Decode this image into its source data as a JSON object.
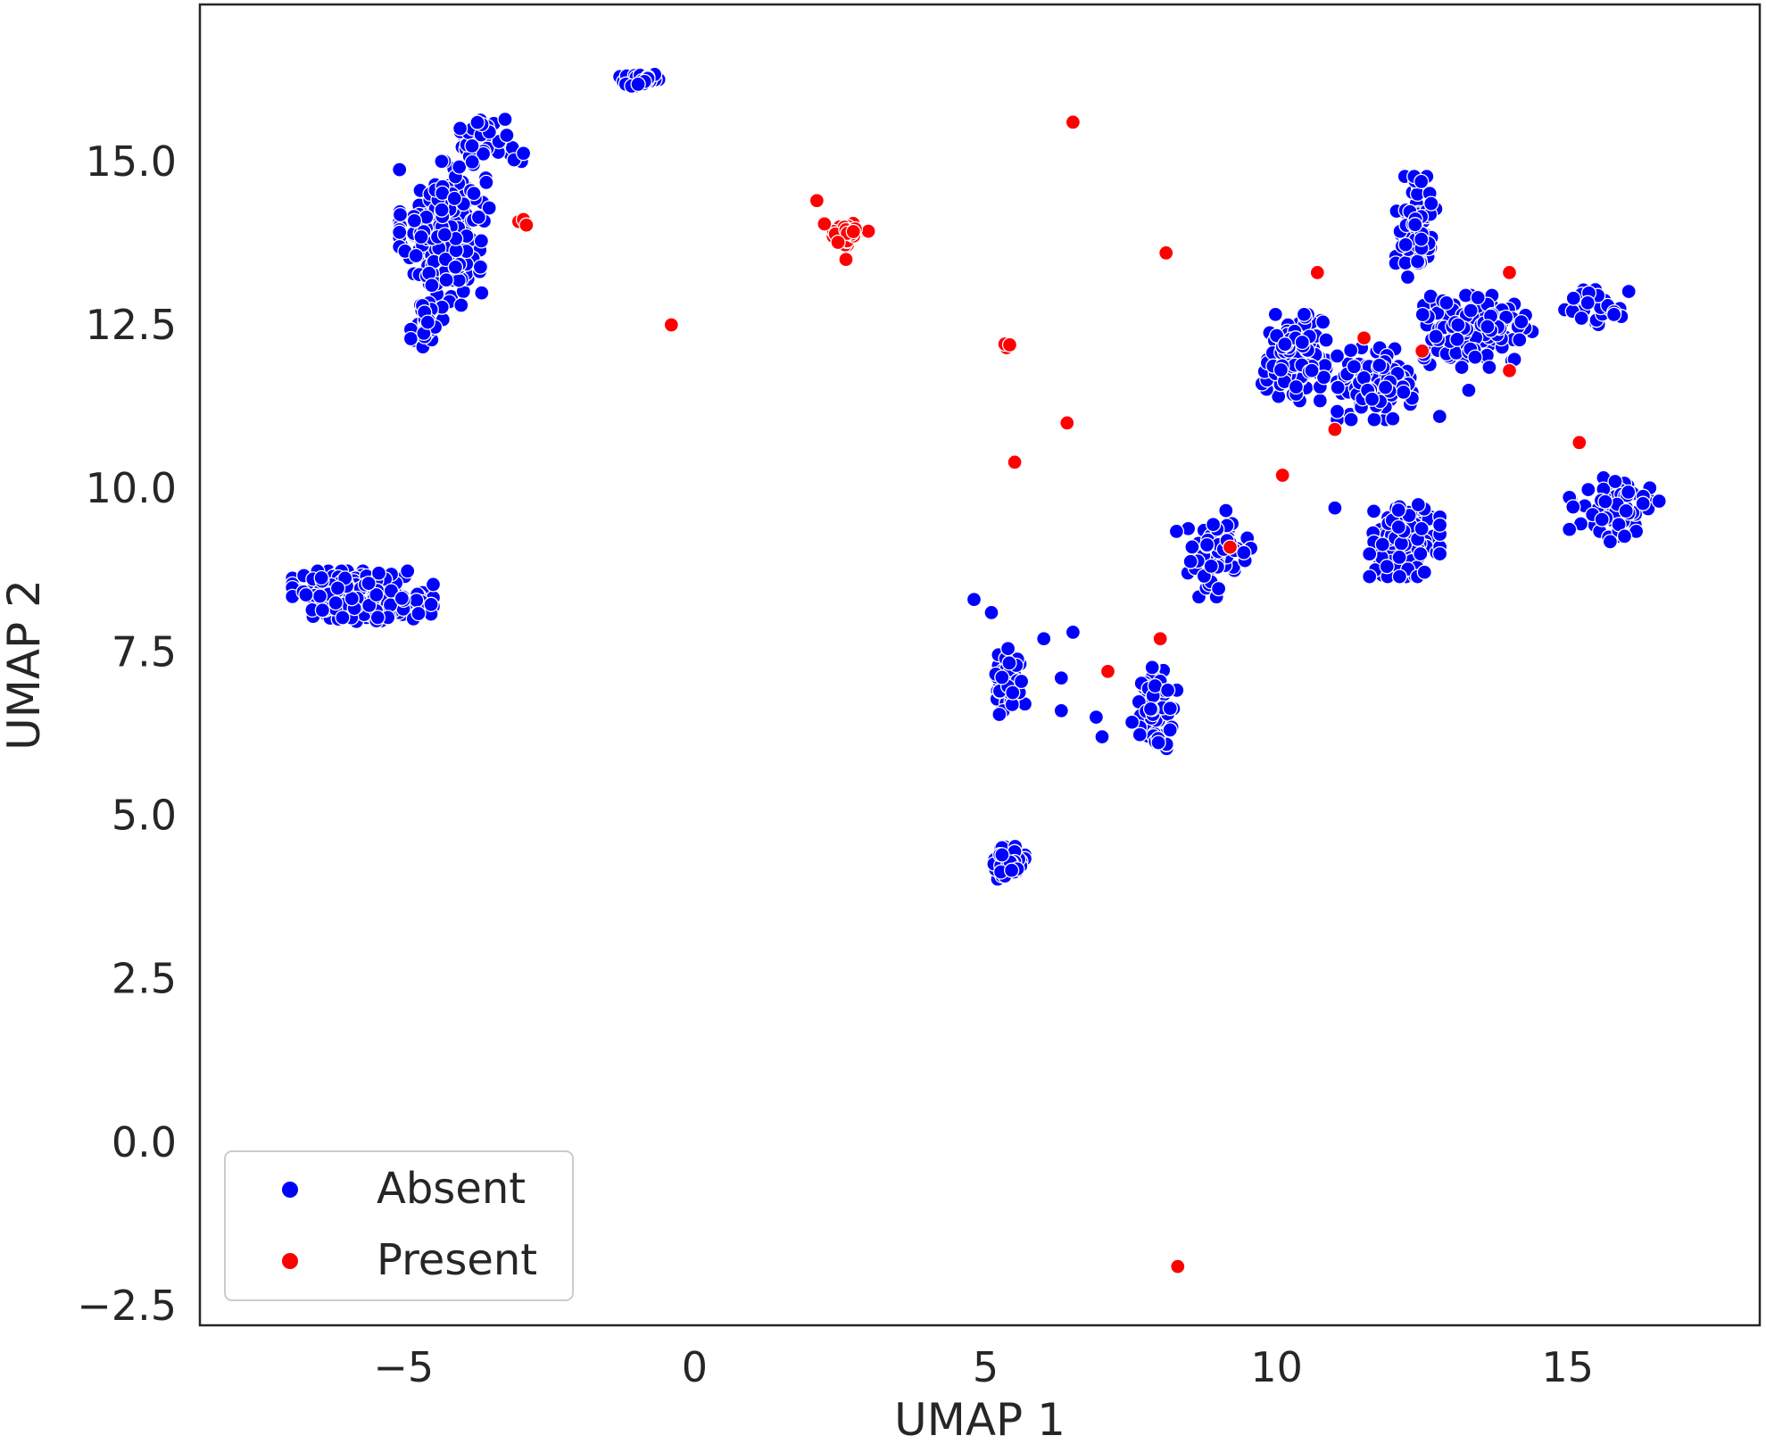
{
  "chart_data": {
    "type": "scatter",
    "title": "",
    "xlabel": "UMAP 1",
    "ylabel": "UMAP 2",
    "xlim": [
      -8.5,
      18.3
    ],
    "ylim": [
      -2.8,
      17.4
    ],
    "xticks": [
      -5,
      0,
      5,
      10,
      15
    ],
    "xtick_labels": [
      "−5",
      "0",
      "5",
      "10",
      "15"
    ],
    "yticks": [
      -2.5,
      0.0,
      2.5,
      5.0,
      7.5,
      10.0,
      12.5,
      15.0
    ],
    "ytick_labels": [
      "−2.5",
      "0.0",
      "2.5",
      "5.0",
      "7.5",
      "10.0",
      "12.5",
      "15.0"
    ],
    "grid": false,
    "legend_position": "lower-left",
    "series": [
      {
        "name": "Absent",
        "color": "#0000ff",
        "clusters": [
          {
            "center": [
              -4.3,
              13.9
            ],
            "spread": [
              0.7,
              1.0
            ],
            "count": 240
          },
          {
            "center": [
              -3.6,
              15.3
            ],
            "spread": [
              0.6,
              0.35
            ],
            "count": 45
          },
          {
            "center": [
              -4.6,
              12.5
            ],
            "spread": [
              0.25,
              0.5
            ],
            "count": 30
          },
          {
            "center": [
              -0.9,
              16.25
            ],
            "spread": [
              0.35,
              0.12
            ],
            "count": 30
          },
          {
            "center": [
              -5.7,
              8.35
            ],
            "spread": [
              1.1,
              0.35
            ],
            "count": 300
          },
          {
            "center": [
              5.4,
              7.0
            ],
            "spread": [
              0.25,
              0.5
            ],
            "count": 60
          },
          {
            "center": [
              5.4,
              4.3
            ],
            "spread": [
              0.25,
              0.25
            ],
            "count": 60
          },
          {
            "center": [
              7.9,
              6.6
            ],
            "spread": [
              0.35,
              0.6
            ],
            "count": 70
          },
          {
            "center": [
              9.0,
              9.0
            ],
            "spread": [
              0.7,
              0.6
            ],
            "count": 60
          },
          {
            "center": [
              10.3,
              12.0
            ],
            "spread": [
              0.5,
              0.6
            ],
            "count": 150
          },
          {
            "center": [
              11.7,
              11.6
            ],
            "spread": [
              0.6,
              0.5
            ],
            "count": 120
          },
          {
            "center": [
              12.4,
              14.0
            ],
            "spread": [
              0.35,
              0.7
            ],
            "count": 80
          },
          {
            "center": [
              13.4,
              12.4
            ],
            "spread": [
              0.9,
              0.5
            ],
            "count": 150
          },
          {
            "center": [
              12.2,
              9.2
            ],
            "spread": [
              0.55,
              0.5
            ],
            "count": 140
          },
          {
            "center": [
              15.8,
              9.7
            ],
            "spread": [
              0.7,
              0.5
            ],
            "count": 70
          },
          {
            "center": [
              15.5,
              12.8
            ],
            "spread": [
              0.5,
              0.3
            ],
            "count": 30
          }
        ],
        "outliers": [
          [
            4.8,
            8.3
          ],
          [
            5.1,
            8.1
          ],
          [
            6.0,
            7.7
          ],
          [
            6.3,
            7.1
          ],
          [
            6.3,
            6.6
          ],
          [
            6.5,
            7.8
          ],
          [
            6.9,
            6.5
          ],
          [
            7.0,
            6.2
          ],
          [
            11.0,
            9.7
          ],
          [
            12.8,
            11.1
          ],
          [
            13.3,
            11.5
          ]
        ]
      },
      {
        "name": "Present",
        "color": "#ff0000",
        "clusters": [
          {
            "center": [
              2.6,
              13.9
            ],
            "spread": [
              0.35,
              0.2
            ],
            "count": 35
          },
          {
            "center": [
              5.4,
              12.2
            ],
            "spread": [
              0.08,
              0.06
            ],
            "count": 5
          },
          {
            "center": [
              -3.0,
              14.0
            ],
            "spread": [
              0.1,
              0.12
            ],
            "count": 3
          }
        ],
        "outliers": [
          [
            2.1,
            14.4
          ],
          [
            2.6,
            13.5
          ],
          [
            -0.4,
            12.5
          ],
          [
            6.5,
            15.6
          ],
          [
            8.1,
            13.6
          ],
          [
            5.5,
            10.4
          ],
          [
            6.4,
            11.0
          ],
          [
            10.1,
            10.2
          ],
          [
            9.2,
            9.1
          ],
          [
            7.1,
            7.2
          ],
          [
            8.0,
            7.7
          ],
          [
            10.7,
            13.3
          ],
          [
            11.0,
            10.9
          ],
          [
            11.5,
            12.3
          ],
          [
            12.5,
            12.1
          ],
          [
            14.0,
            13.3
          ],
          [
            14.0,
            11.8
          ],
          [
            15.2,
            10.7
          ],
          [
            8.3,
            -1.9
          ]
        ]
      }
    ]
  }
}
